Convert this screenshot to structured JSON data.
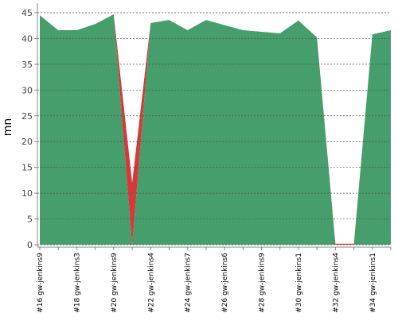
{
  "chart_data": {
    "type": "stacked_area",
    "y_label": "mn",
    "categories": [
      "#16 gw-jenkins9",
      null,
      "#18 gw-jenkins3",
      null,
      "#20 gw-jenkins9",
      null,
      "#22 gw-jenkins4",
      null,
      "#24 gw-jenkins7",
      null,
      "#26 gw-jenkins6",
      null,
      "#28 gw-jenkins9",
      null,
      "#30 gw-jenkins1",
      null,
      "#32 gw-jenkins4",
      null,
      "#34 gw-jenkins1",
      null
    ],
    "series": [
      {
        "color": "#459e6b",
        "values": [
          44.5,
          41.6,
          41.6,
          42.8,
          44.7,
          0,
          43,
          43.6,
          41.6,
          43.6,
          42.6,
          41.6,
          41.3,
          41,
          43.5,
          40.2,
          0,
          0,
          40.8,
          41.6
        ]
      },
      {
        "color": "#d53a3a",
        "values": [
          0,
          0,
          0,
          0,
          0,
          12,
          0,
          0,
          0,
          0,
          0,
          0,
          0,
          0,
          0,
          0,
          0.2,
          0.2,
          0,
          0
        ]
      }
    ],
    "ylim": [
      0,
      45
    ],
    "yticks": [
      0,
      5,
      10,
      15,
      20,
      25,
      30,
      35,
      40,
      45
    ],
    "grid": true
  }
}
